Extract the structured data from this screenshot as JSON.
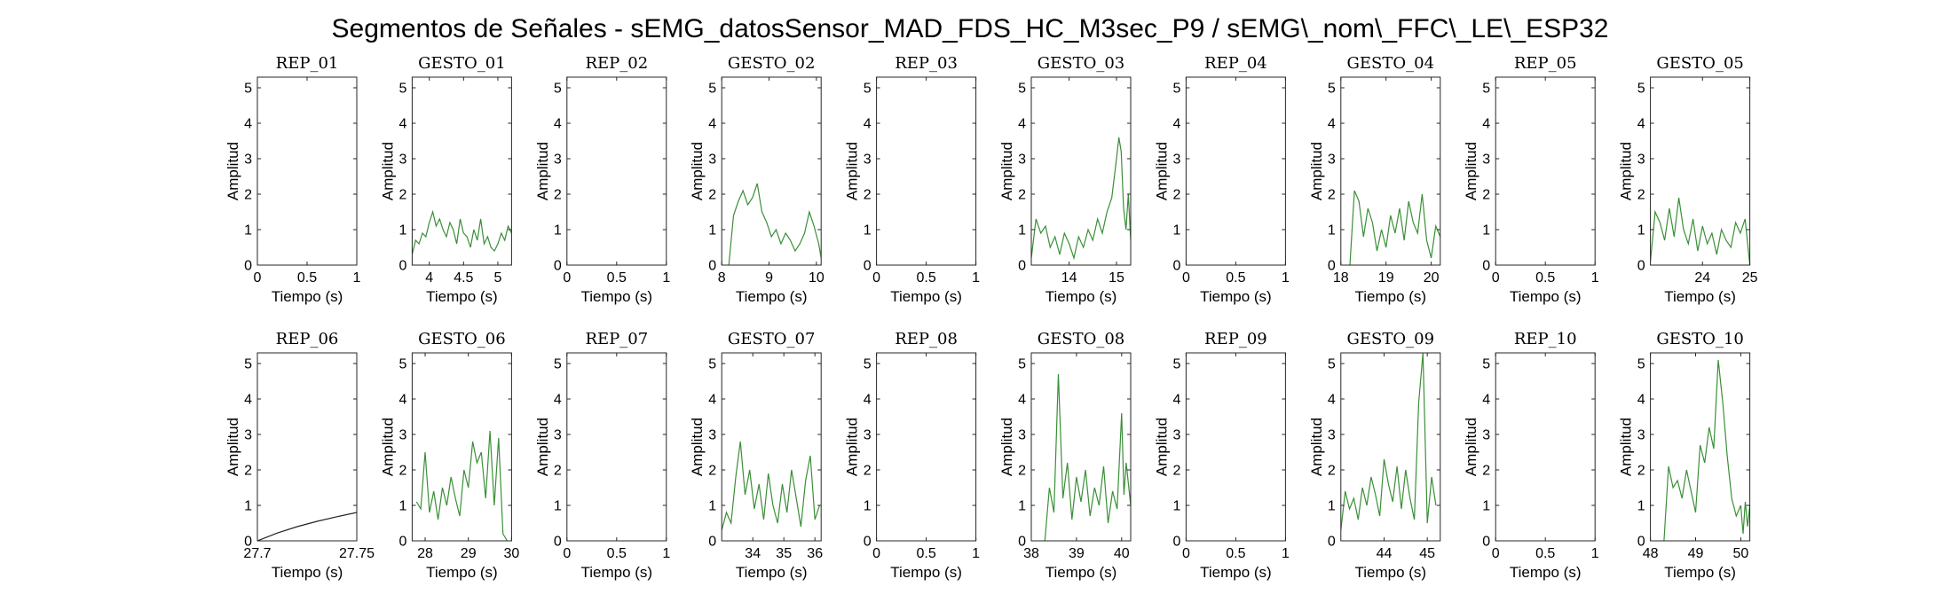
{
  "figure": {
    "title": "Segmentos de Señales - sEMG_datosSensor_MAD_FDS_HC_M3sec_P9 / sEMG\\_nom\\_FFC\\_LE\\_ESP32"
  },
  "colors": {
    "signal": "#3a8f36",
    "rep_line": "#222222",
    "axis": "#262626"
  },
  "chart_data": [
    {
      "type": "line",
      "title": "REP_01",
      "xlabel": "Tiempo (s)",
      "ylabel": "Amplitud",
      "xlim": [
        0,
        1
      ],
      "ylim": [
        0,
        5.3
      ],
      "xticks": [
        0,
        0.5,
        1
      ],
      "xticklabels": [
        "0",
        "0.5",
        "1"
      ],
      "yticks": [
        0,
        1,
        2,
        3,
        4,
        5
      ],
      "color": "#222222",
      "x": [],
      "y": []
    },
    {
      "type": "line",
      "title": "GESTO_01",
      "xlabel": "Tiempo (s)",
      "ylabel": "Amplitud",
      "xlim": [
        3.75,
        5.2
      ],
      "ylim": [
        0,
        5.3
      ],
      "xticks": [
        4,
        4.5,
        5
      ],
      "xticklabels": [
        "4",
        "4.5",
        "5"
      ],
      "yticks": [
        0,
        1,
        2,
        3,
        4,
        5
      ],
      "color": "#3a8f36",
      "x": [
        3.75,
        3.8,
        3.85,
        3.9,
        3.95,
        4.0,
        4.05,
        4.1,
        4.15,
        4.2,
        4.25,
        4.3,
        4.35,
        4.4,
        4.45,
        4.5,
        4.55,
        4.6,
        4.65,
        4.7,
        4.75,
        4.8,
        4.85,
        4.9,
        4.95,
        5.0,
        5.05,
        5.1,
        5.15,
        5.2
      ],
      "y": [
        0.3,
        0.7,
        0.6,
        0.9,
        0.8,
        1.2,
        1.5,
        1.1,
        1.3,
        1.0,
        0.8,
        1.2,
        1.0,
        0.6,
        1.3,
        0.9,
        0.8,
        0.5,
        1.0,
        0.7,
        1.3,
        0.6,
        0.8,
        0.5,
        0.4,
        0.6,
        0.9,
        0.7,
        1.1,
        0.9
      ]
    },
    {
      "type": "line",
      "title": "REP_02",
      "xlabel": "Tiempo (s)",
      "ylabel": "Amplitud",
      "xlim": [
        0,
        1
      ],
      "ylim": [
        0,
        5.3
      ],
      "xticks": [
        0,
        0.5,
        1
      ],
      "xticklabels": [
        "0",
        "0.5",
        "1"
      ],
      "yticks": [
        0,
        1,
        2,
        3,
        4,
        5
      ],
      "color": "#222222",
      "x": [],
      "y": []
    },
    {
      "type": "line",
      "title": "GESTO_02",
      "xlabel": "Tiempo (s)",
      "ylabel": "Amplitud",
      "xlim": [
        8,
        10.1
      ],
      "ylim": [
        0,
        5.3
      ],
      "xticks": [
        8,
        9,
        10
      ],
      "xticklabels": [
        "8",
        "9",
        "10"
      ],
      "yticks": [
        0,
        1,
        2,
        3,
        4,
        5
      ],
      "color": "#3a8f36",
      "x": [
        8.15,
        8.25,
        8.35,
        8.45,
        8.55,
        8.65,
        8.75,
        8.85,
        8.95,
        9.05,
        9.15,
        9.25,
        9.35,
        9.45,
        9.55,
        9.65,
        9.75,
        9.85,
        9.95,
        10.05,
        10.1
      ],
      "y": [
        0.0,
        1.4,
        1.8,
        2.1,
        1.7,
        1.9,
        2.3,
        1.5,
        1.2,
        0.8,
        1.0,
        0.6,
        0.9,
        0.7,
        0.4,
        0.6,
        0.9,
        1.5,
        1.1,
        0.6,
        0.2
      ]
    },
    {
      "type": "line",
      "title": "REP_03",
      "xlabel": "Tiempo (s)",
      "ylabel": "Amplitud",
      "xlim": [
        0,
        1
      ],
      "ylim": [
        0,
        5.3
      ],
      "xticks": [
        0,
        0.5,
        1
      ],
      "xticklabels": [
        "0",
        "0.5",
        "1"
      ],
      "yticks": [
        0,
        1,
        2,
        3,
        4,
        5
      ],
      "color": "#222222",
      "x": [],
      "y": []
    },
    {
      "type": "line",
      "title": "GESTO_03",
      "xlabel": "Tiempo (s)",
      "ylabel": "Amplitud",
      "xlim": [
        13.2,
        15.3
      ],
      "ylim": [
        0,
        5.3
      ],
      "xticks": [
        14,
        15
      ],
      "xticklabels": [
        "14",
        "15"
      ],
      "yticks": [
        0,
        1,
        2,
        3,
        4,
        5
      ],
      "color": "#3a8f36",
      "x": [
        13.2,
        13.3,
        13.4,
        13.5,
        13.6,
        13.7,
        13.8,
        13.9,
        14.0,
        14.1,
        14.2,
        14.3,
        14.4,
        14.5,
        14.6,
        14.7,
        14.8,
        14.9,
        15.0,
        15.05,
        15.1,
        15.15,
        15.2,
        15.25,
        15.3
      ],
      "y": [
        0.2,
        1.3,
        0.9,
        1.1,
        0.5,
        0.8,
        0.3,
        0.9,
        0.6,
        0.2,
        0.8,
        0.5,
        1.0,
        0.7,
        1.3,
        0.9,
        1.5,
        1.9,
        3.0,
        3.6,
        3.2,
        1.6,
        1.0,
        2.0,
        0.7
      ]
    },
    {
      "type": "line",
      "title": "REP_04",
      "xlabel": "Tiempo (s)",
      "ylabel": "Amplitud",
      "xlim": [
        0,
        1
      ],
      "ylim": [
        0,
        5.3
      ],
      "xticks": [
        0,
        0.5,
        1
      ],
      "xticklabels": [
        "0",
        "0.5",
        "1"
      ],
      "yticks": [
        0,
        1,
        2,
        3,
        4,
        5
      ],
      "color": "#222222",
      "x": [],
      "y": []
    },
    {
      "type": "line",
      "title": "GESTO_04",
      "xlabel": "Tiempo (s)",
      "ylabel": "Amplitud",
      "xlim": [
        18,
        20.2
      ],
      "ylim": [
        0,
        5.3
      ],
      "xticks": [
        18,
        19,
        20
      ],
      "xticklabels": [
        "18",
        "19",
        "20"
      ],
      "yticks": [
        0,
        1,
        2,
        3,
        4,
        5
      ],
      "color": "#3a8f36",
      "x": [
        18.2,
        18.3,
        18.4,
        18.5,
        18.6,
        18.7,
        18.8,
        18.9,
        19.0,
        19.1,
        19.2,
        19.3,
        19.4,
        19.5,
        19.6,
        19.7,
        19.8,
        19.9,
        20.0,
        20.1,
        20.2
      ],
      "y": [
        0.0,
        2.1,
        1.8,
        0.8,
        1.6,
        1.2,
        0.4,
        1.0,
        0.5,
        1.4,
        0.9,
        1.6,
        0.7,
        1.8,
        1.2,
        0.9,
        2.0,
        0.7,
        0.2,
        1.1,
        0.8
      ]
    },
    {
      "type": "line",
      "title": "REP_05",
      "xlabel": "Tiempo (s)",
      "ylabel": "Amplitud",
      "xlim": [
        0,
        1
      ],
      "ylim": [
        0,
        5.3
      ],
      "xticks": [
        0,
        0.5,
        1
      ],
      "xticklabels": [
        "0",
        "0.5",
        "1"
      ],
      "yticks": [
        0,
        1,
        2,
        3,
        4,
        5
      ],
      "color": "#222222",
      "x": [],
      "y": []
    },
    {
      "type": "line",
      "title": "GESTO_05",
      "xlabel": "Tiempo (s)",
      "ylabel": "Amplitud",
      "xlim": [
        22.9,
        25
      ],
      "ylim": [
        0,
        5.3
      ],
      "xticks": [
        24,
        25
      ],
      "xticklabels": [
        "24",
        "25"
      ],
      "yticks": [
        0,
        1,
        2,
        3,
        4,
        5
      ],
      "color": "#3a8f36",
      "x": [
        22.9,
        23.0,
        23.1,
        23.2,
        23.3,
        23.4,
        23.5,
        23.6,
        23.7,
        23.8,
        23.9,
        24.0,
        24.1,
        24.2,
        24.3,
        24.4,
        24.5,
        24.6,
        24.7,
        24.8,
        24.9,
        25.0
      ],
      "y": [
        0.1,
        1.5,
        1.2,
        0.7,
        1.6,
        0.8,
        1.9,
        1.0,
        0.6,
        1.3,
        0.4,
        1.1,
        0.6,
        0.9,
        0.3,
        1.0,
        0.7,
        0.5,
        1.2,
        0.9,
        1.3,
        0.0
      ]
    },
    {
      "type": "line",
      "title": "REP_06",
      "xlabel": "Tiempo (s)",
      "ylabel": "Amplitud",
      "xlim": [
        27.7,
        27.75
      ],
      "ylim": [
        0,
        5.3
      ],
      "xticks": [
        27.7,
        27.75
      ],
      "xticklabels": [
        "27.7",
        "27.75"
      ],
      "yticks": [
        0,
        1,
        2,
        3,
        4,
        5
      ],
      "color": "#222222",
      "x": [
        27.7,
        27.71,
        27.72,
        27.73,
        27.74,
        27.75
      ],
      "y": [
        0.0,
        0.22,
        0.4,
        0.55,
        0.68,
        0.8
      ]
    },
    {
      "type": "line",
      "title": "GESTO_06",
      "xlabel": "Tiempo (s)",
      "ylabel": "Amplitud",
      "xlim": [
        27.7,
        30
      ],
      "ylim": [
        0,
        5.3
      ],
      "xticks": [
        28,
        29,
        30
      ],
      "xticklabels": [
        "28",
        "29",
        "30"
      ],
      "yticks": [
        0,
        1,
        2,
        3,
        4,
        5
      ],
      "color": "#3a8f36",
      "x": [
        27.8,
        27.9,
        28.0,
        28.1,
        28.2,
        28.3,
        28.4,
        28.5,
        28.6,
        28.7,
        28.8,
        28.9,
        29.0,
        29.1,
        29.2,
        29.3,
        29.4,
        29.5,
        29.6,
        29.7,
        29.8,
        29.9
      ],
      "y": [
        1.1,
        0.9,
        2.5,
        0.8,
        1.4,
        0.6,
        1.5,
        1.0,
        1.8,
        1.2,
        0.7,
        2.0,
        1.5,
        2.8,
        2.2,
        2.5,
        1.2,
        3.1,
        1.0,
        2.9,
        0.2,
        0.0
      ]
    },
    {
      "type": "line",
      "title": "REP_07",
      "xlabel": "Tiempo (s)",
      "ylabel": "Amplitud",
      "xlim": [
        0,
        1
      ],
      "ylim": [
        0,
        5.3
      ],
      "xticks": [
        0,
        0.5,
        1
      ],
      "xticklabels": [
        "0",
        "0.5",
        "1"
      ],
      "yticks": [
        0,
        1,
        2,
        3,
        4,
        5
      ],
      "color": "#222222",
      "x": [],
      "y": []
    },
    {
      "type": "line",
      "title": "GESTO_07",
      "xlabel": "Tiempo (s)",
      "ylabel": "Amplitud",
      "xlim": [
        33,
        36.2
      ],
      "ylim": [
        0,
        5.3
      ],
      "xticks": [
        34,
        35,
        36
      ],
      "xticklabels": [
        "34",
        "35",
        "36"
      ],
      "yticks": [
        0,
        1,
        2,
        3,
        4,
        5
      ],
      "color": "#3a8f36",
      "x": [
        33.0,
        33.15,
        33.3,
        33.45,
        33.6,
        33.75,
        33.9,
        34.05,
        34.2,
        34.35,
        34.5,
        34.65,
        34.8,
        34.95,
        35.1,
        35.25,
        35.4,
        35.55,
        35.7,
        35.85,
        36.0,
        36.15
      ],
      "y": [
        0.3,
        0.8,
        0.5,
        1.8,
        2.8,
        1.3,
        2.0,
        0.9,
        1.6,
        0.6,
        1.9,
        1.0,
        0.5,
        1.6,
        0.8,
        2.0,
        1.2,
        0.4,
        1.7,
        2.4,
        0.6,
        1.0
      ]
    },
    {
      "type": "line",
      "title": "REP_08",
      "xlabel": "Tiempo (s)",
      "ylabel": "Amplitud",
      "xlim": [
        0,
        1
      ],
      "ylim": [
        0,
        5.3
      ],
      "xticks": [
        0,
        0.5,
        1
      ],
      "xticklabels": [
        "0",
        "0.5",
        "1"
      ],
      "yticks": [
        0,
        1,
        2,
        3,
        4,
        5
      ],
      "color": "#222222",
      "x": [],
      "y": []
    },
    {
      "type": "line",
      "title": "GESTO_08",
      "xlabel": "Tiempo (s)",
      "ylabel": "Amplitud",
      "xlim": [
        38,
        40.2
      ],
      "ylim": [
        0,
        5.3
      ],
      "xticks": [
        38,
        39,
        40
      ],
      "xticklabels": [
        "38",
        "39",
        "40"
      ],
      "yticks": [
        0,
        1,
        2,
        3,
        4,
        5
      ],
      "color": "#3a8f36",
      "x": [
        38.3,
        38.4,
        38.5,
        38.6,
        38.7,
        38.8,
        38.9,
        39.0,
        39.1,
        39.2,
        39.3,
        39.4,
        39.5,
        39.6,
        39.7,
        39.8,
        39.9,
        40.0,
        40.05,
        40.1,
        40.2
      ],
      "y": [
        0.0,
        1.5,
        0.8,
        4.7,
        1.2,
        2.2,
        0.6,
        1.8,
        1.1,
        2.0,
        0.7,
        1.5,
        1.0,
        2.1,
        0.5,
        1.4,
        0.9,
        3.6,
        1.3,
        2.2,
        1.0
      ]
    },
    {
      "type": "line",
      "title": "REP_09",
      "xlabel": "Tiempo (s)",
      "ylabel": "Amplitud",
      "xlim": [
        0,
        1
      ],
      "ylim": [
        0,
        5.3
      ],
      "xticks": [
        0,
        0.5,
        1
      ],
      "xticklabels": [
        "0",
        "0.5",
        "1"
      ],
      "yticks": [
        0,
        1,
        2,
        3,
        4,
        5
      ],
      "color": "#222222",
      "x": [],
      "y": []
    },
    {
      "type": "line",
      "title": "GESTO_09",
      "xlabel": "Tiempo (s)",
      "ylabel": "Amplitud",
      "xlim": [
        43,
        45.3
      ],
      "ylim": [
        0,
        5.3
      ],
      "xticks": [
        44,
        45
      ],
      "xticklabels": [
        "44",
        "45"
      ],
      "yticks": [
        0,
        1,
        2,
        3,
        4,
        5
      ],
      "color": "#3a8f36",
      "x": [
        43.0,
        43.1,
        43.2,
        43.3,
        43.4,
        43.5,
        43.6,
        43.7,
        43.8,
        43.9,
        44.0,
        44.1,
        44.2,
        44.3,
        44.4,
        44.5,
        44.6,
        44.7,
        44.8,
        44.9,
        45.0,
        45.1,
        45.2
      ],
      "y": [
        0.3,
        1.4,
        0.9,
        1.2,
        0.6,
        1.5,
        1.0,
        1.8,
        1.3,
        0.7,
        2.3,
        1.6,
        1.1,
        2.1,
        0.9,
        2.0,
        1.2,
        0.6,
        3.9,
        5.3,
        0.5,
        1.8,
        1.0
      ]
    },
    {
      "type": "line",
      "title": "REP_10",
      "xlabel": "Tiempo (s)",
      "ylabel": "Amplitud",
      "xlim": [
        0,
        1
      ],
      "ylim": [
        0,
        5.3
      ],
      "xticks": [
        0,
        0.5,
        1
      ],
      "xticklabels": [
        "0",
        "0.5",
        "1"
      ],
      "yticks": [
        0,
        1,
        2,
        3,
        4,
        5
      ],
      "color": "#222222",
      "x": [],
      "y": []
    },
    {
      "type": "line",
      "title": "GESTO_10",
      "xlabel": "Tiempo (s)",
      "ylabel": "Amplitud",
      "xlim": [
        48,
        50.2
      ],
      "ylim": [
        0,
        5.3
      ],
      "xticks": [
        48,
        49,
        50
      ],
      "xticklabels": [
        "48",
        "49",
        "50"
      ],
      "yticks": [
        0,
        1,
        2,
        3,
        4,
        5
      ],
      "color": "#3a8f36",
      "x": [
        48.3,
        48.4,
        48.5,
        48.6,
        48.7,
        48.8,
        48.9,
        49.0,
        49.1,
        49.2,
        49.3,
        49.4,
        49.5,
        49.6,
        49.7,
        49.8,
        49.9,
        50.0,
        50.05,
        50.1,
        50.15,
        50.2
      ],
      "y": [
        0.0,
        2.1,
        1.5,
        1.7,
        1.2,
        2.0,
        1.4,
        0.8,
        2.7,
        2.2,
        3.2,
        2.6,
        5.1,
        3.9,
        2.4,
        1.2,
        0.7,
        1.0,
        0.2,
        1.1,
        0.4,
        1.0
      ]
    }
  ]
}
